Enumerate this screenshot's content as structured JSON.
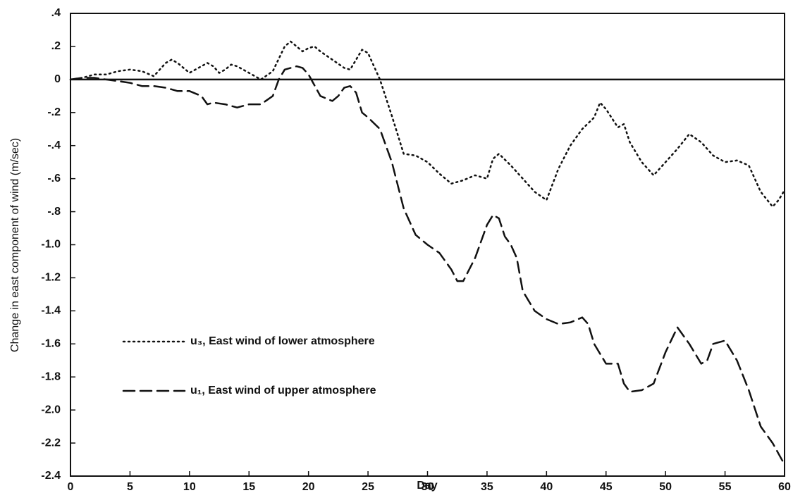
{
  "chart_data": {
    "type": "line",
    "xlabel": "Day",
    "ylabel": "Change in east component of wind (m/sec)",
    "xlim": [
      0,
      60
    ],
    "xticks": [
      0,
      5,
      10,
      15,
      20,
      25,
      30,
      35,
      40,
      45,
      50,
      55,
      60
    ],
    "ylim": [
      -2.4,
      0.4
    ],
    "yticks": [
      {
        "value": 0.4,
        "label": ".4"
      },
      {
        "value": 0.2,
        "label": ".2"
      },
      0,
      {
        "value": -0.2,
        "label": "-.2"
      },
      {
        "value": -0.4,
        "label": "-.4"
      },
      {
        "value": -0.6,
        "label": "-.6"
      },
      {
        "value": -0.8,
        "label": "-.8"
      },
      {
        "value": -1.0,
        "label": "-1.0"
      },
      -1.2,
      -1.4,
      -1.6,
      -1.8,
      {
        "value": -2.0,
        "label": "-2.0"
      },
      -2.2,
      -2.4
    ],
    "hlines": [
      0
    ],
    "series": [
      {
        "name": "u₃, East wind of lower atmosphere",
        "color": "#111",
        "dash": "dotted",
        "x": [
          0,
          1,
          2,
          3,
          4,
          5,
          6,
          7,
          8,
          8.5,
          9,
          10,
          11,
          11.5,
          12,
          12.5,
          13,
          13.5,
          14,
          15,
          16,
          17,
          18,
          18.5,
          19,
          19.5,
          20,
          20.5,
          21,
          22,
          23,
          23.5,
          24,
          24.5,
          25,
          26,
          27,
          28,
          29,
          30,
          31,
          32,
          33,
          34,
          35,
          35.5,
          36,
          37,
          38,
          39,
          40,
          41,
          42,
          43,
          44,
          44.5,
          45,
          46,
          46.5,
          47,
          48,
          49,
          50,
          51,
          52,
          53,
          54,
          55,
          56,
          57,
          58,
          59,
          59.5,
          60
        ],
        "values": [
          0,
          0.01,
          0.03,
          0.03,
          0.05,
          0.06,
          0.05,
          0.02,
          0.1,
          0.12,
          0.1,
          0.04,
          0.08,
          0.1,
          0.08,
          0.04,
          0.06,
          0.09,
          0.08,
          0.04,
          0.0,
          0.05,
          0.2,
          0.23,
          0.2,
          0.17,
          0.19,
          0.2,
          0.17,
          0.12,
          0.07,
          0.06,
          0.12,
          0.18,
          0.16,
          0.0,
          -0.22,
          -0.45,
          -0.46,
          -0.5,
          -0.57,
          -0.63,
          -0.61,
          -0.58,
          -0.6,
          -0.48,
          -0.45,
          -0.52,
          -0.6,
          -0.68,
          -0.73,
          -0.54,
          -0.4,
          -0.3,
          -0.23,
          -0.14,
          -0.18,
          -0.29,
          -0.27,
          -0.38,
          -0.5,
          -0.58,
          -0.5,
          -0.42,
          -0.33,
          -0.38,
          -0.46,
          -0.5,
          -0.49,
          -0.52,
          -0.68,
          -0.77,
          -0.73,
          -0.67
        ]
      },
      {
        "name": "u₁, East wind of upper atmosphere",
        "color": "#111",
        "dash": "dashed",
        "x": [
          0,
          1,
          2,
          3,
          4,
          5,
          6,
          7,
          8,
          9,
          10,
          11,
          11.5,
          12,
          13,
          14,
          15,
          16,
          17,
          17.5,
          18,
          19,
          19.5,
          20,
          21,
          22,
          22.5,
          23,
          23.5,
          24,
          24.5,
          25,
          26,
          27,
          28,
          29,
          30,
          31,
          32,
          32.5,
          33,
          34,
          35,
          35.5,
          36,
          36.5,
          37,
          37.5,
          38,
          39,
          40,
          41,
          42,
          43,
          43.5,
          44,
          45,
          46,
          46.5,
          47,
          48,
          49,
          50,
          51,
          52,
          53,
          53.5,
          54,
          55,
          56,
          57,
          58,
          59,
          60
        ],
        "values": [
          0,
          0.01,
          0.01,
          0,
          -0.01,
          -0.02,
          -0.04,
          -0.04,
          -0.05,
          -0.07,
          -0.07,
          -0.1,
          -0.15,
          -0.14,
          -0.15,
          -0.17,
          -0.15,
          -0.15,
          -0.1,
          0.0,
          0.06,
          0.08,
          0.07,
          0.03,
          -0.1,
          -0.13,
          -0.1,
          -0.05,
          -0.04,
          -0.08,
          -0.2,
          -0.23,
          -0.3,
          -0.5,
          -0.78,
          -0.94,
          -1.0,
          -1.05,
          -1.15,
          -1.22,
          -1.22,
          -1.08,
          -0.88,
          -0.82,
          -0.84,
          -0.95,
          -1.0,
          -1.08,
          -1.28,
          -1.4,
          -1.45,
          -1.48,
          -1.47,
          -1.44,
          -1.48,
          -1.6,
          -1.72,
          -1.72,
          -1.84,
          -1.89,
          -1.88,
          -1.84,
          -1.65,
          -1.5,
          -1.6,
          -1.72,
          -1.7,
          -1.6,
          -1.58,
          -1.7,
          -1.88,
          -2.1,
          -2.2,
          -2.33
        ]
      }
    ]
  }
}
